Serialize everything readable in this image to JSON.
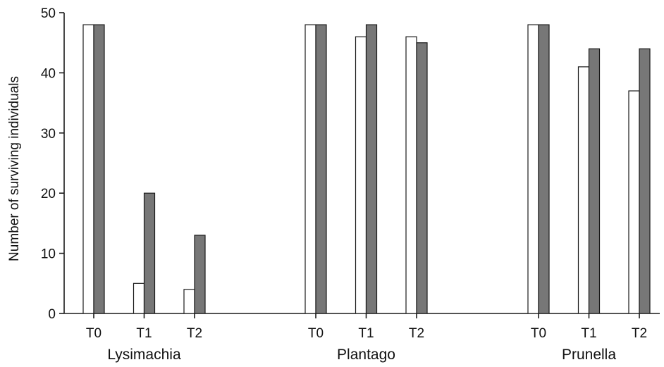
{
  "chart_data": {
    "type": "bar",
    "title": "",
    "ylabel": "Number of surviving individuals",
    "xlabel": "",
    "ylim": [
      0,
      50
    ],
    "yticks": [
      0,
      10,
      20,
      30,
      40,
      50
    ],
    "grid": false,
    "legend": "none",
    "groups": [
      {
        "name": "Lysimachia",
        "categories": [
          "T0",
          "T1",
          "T2"
        ],
        "series": [
          {
            "values": [
              48,
              5,
              4
            ],
            "color": "#ffffff"
          },
          {
            "values": [
              48,
              20,
              13
            ],
            "color": "#777777"
          }
        ]
      },
      {
        "name": "Plantago",
        "categories": [
          "T0",
          "T1",
          "T2"
        ],
        "series": [
          {
            "values": [
              48,
              46,
              46
            ],
            "color": "#ffffff"
          },
          {
            "values": [
              48,
              48,
              45
            ],
            "color": "#777777"
          }
        ]
      },
      {
        "name": "Prunella",
        "categories": [
          "T0",
          "T1",
          "T2"
        ],
        "series": [
          {
            "values": [
              48,
              41,
              37
            ],
            "color": "#ffffff"
          },
          {
            "values": [
              48,
              44,
              44
            ],
            "color": "#777777"
          }
        ]
      }
    ]
  }
}
